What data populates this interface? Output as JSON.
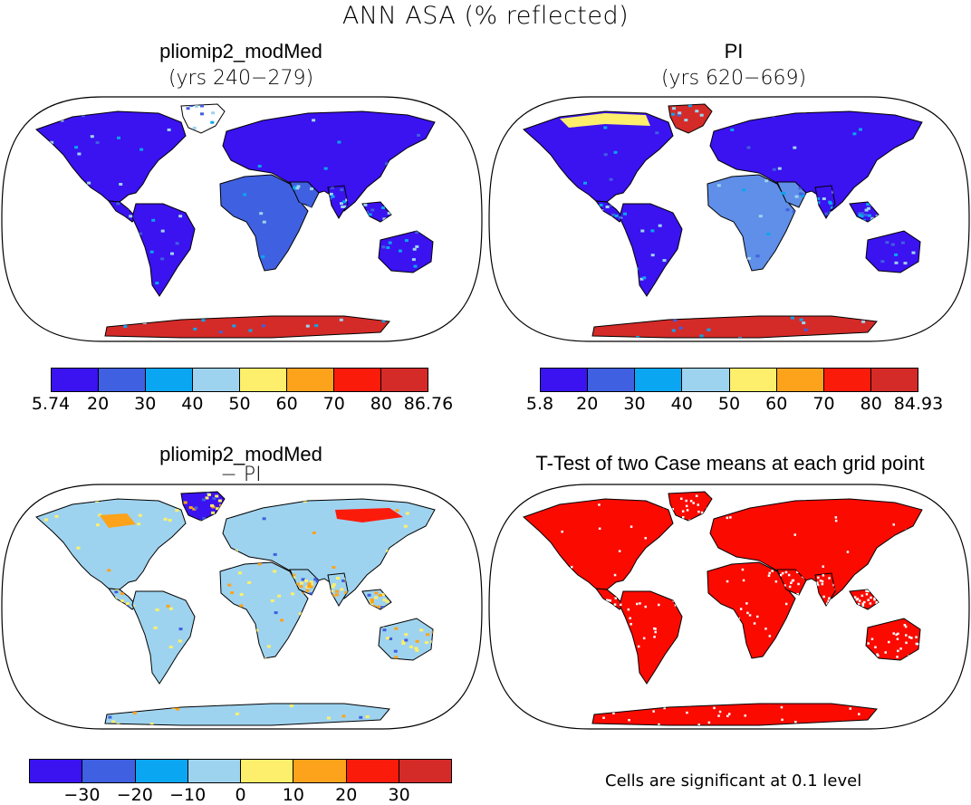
{
  "title": "ANN ASA (% reflected)",
  "panels": [
    {
      "title": "pliomip2_modMed",
      "subtitle": "(yrs 240−279)"
    },
    {
      "title": "PI",
      "subtitle": "(yrs 620−669)"
    },
    {
      "title": "pliomip2_modMed",
      "subtitle": "− PI"
    },
    {
      "title": "T-Test of two Case means at each grid point",
      "subtitle": ""
    }
  ],
  "colorbars": [
    {
      "colors": [
        "#3b12f0",
        "#3f60e0",
        "#0aa6f2",
        "#9ed3ef",
        "#fdef6b",
        "#fca31b",
        "#fb1b0b",
        "#d42b28"
      ],
      "labels": [
        "5.74",
        "20",
        "30",
        "40",
        "50",
        "60",
        "70",
        "80",
        "86.76"
      ]
    },
    {
      "colors": [
        "#3b12f0",
        "#3f60e0",
        "#0aa6f2",
        "#9ed3ef",
        "#fdef6b",
        "#fca31b",
        "#fb1b0b",
        "#d42b28"
      ],
      "labels": [
        "5.8",
        "20",
        "30",
        "40",
        "50",
        "60",
        "70",
        "80",
        "84.93"
      ]
    },
    {
      "colors": [
        "#3b12f0",
        "#3f60e0",
        "#0aa6f2",
        "#9ed3ef",
        "#fdef6b",
        "#fca31b",
        "#fb1b0b",
        "#d42b28"
      ],
      "labels": [
        "−30",
        "−20",
        "−10",
        "0",
        "10",
        "20",
        "30"
      ]
    }
  ],
  "significance_note": "Cells are significant at 0.1 level"
}
